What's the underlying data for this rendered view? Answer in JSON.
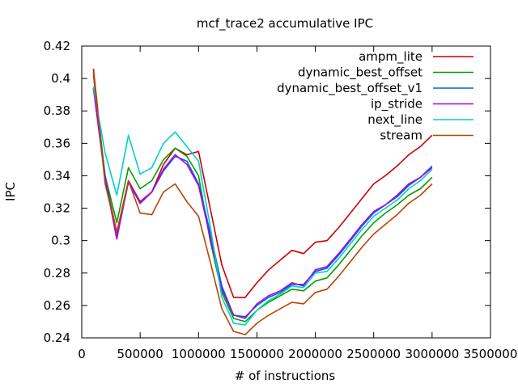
{
  "chart_data": {
    "type": "line",
    "title": "mcf_trace2 accumulative IPC",
    "xlabel": "# of instructions",
    "ylabel": "IPC",
    "xlim": [
      0,
      3500000
    ],
    "ylim": [
      0.24,
      0.42
    ],
    "x_ticks": [
      0,
      500000,
      1000000,
      1500000,
      2000000,
      2500000,
      3000000,
      3500000
    ],
    "y_ticks": [
      0.24,
      0.26,
      0.28,
      0.3,
      0.32,
      0.34,
      0.36,
      0.38,
      0.4,
      0.42
    ],
    "x_tick_labels": [
      "0",
      "500000",
      "1000000",
      "1500000",
      "2000000",
      "2500000",
      "3000000",
      "3500000"
    ],
    "y_tick_labels": [
      "0.24",
      "0.26",
      "0.28",
      "0.3",
      "0.32",
      "0.34",
      "0.36",
      "0.38",
      "0.4",
      "0.42"
    ],
    "grid": false,
    "legend_position": "top-right",
    "x": [
      100000,
      200000,
      300000,
      400000,
      500000,
      600000,
      700000,
      800000,
      900000,
      1000000,
      1100000,
      1200000,
      1300000,
      1400000,
      1500000,
      1600000,
      1700000,
      1800000,
      1900000,
      2000000,
      2100000,
      2200000,
      2300000,
      2400000,
      2500000,
      2600000,
      2700000,
      2800000,
      2900000,
      3000000
    ],
    "series": [
      {
        "name": "ampm_lite",
        "color": "#cc0000",
        "values": [
          0.406,
          0.338,
          0.305,
          0.337,
          0.324,
          0.33,
          0.347,
          0.357,
          0.353,
          0.355,
          0.32,
          0.285,
          0.265,
          0.265,
          0.274,
          0.282,
          0.288,
          0.294,
          0.292,
          0.299,
          0.3,
          0.308,
          0.317,
          0.326,
          0.335,
          0.34,
          0.346,
          0.353,
          0.358,
          0.365
        ]
      },
      {
        "name": "dynamic_best_offset",
        "color": "#00a000",
        "values": [
          0.402,
          0.34,
          0.311,
          0.345,
          0.332,
          0.337,
          0.35,
          0.357,
          0.352,
          0.34,
          0.3,
          0.268,
          0.252,
          0.25,
          0.257,
          0.262,
          0.266,
          0.27,
          0.269,
          0.275,
          0.277,
          0.285,
          0.294,
          0.303,
          0.311,
          0.317,
          0.322,
          0.328,
          0.332,
          0.339
        ]
      },
      {
        "name": "dynamic_best_offset_v1",
        "color": "#0066cc",
        "values": [
          0.394,
          0.34,
          0.302,
          0.336,
          0.323,
          0.33,
          0.343,
          0.352,
          0.349,
          0.335,
          0.305,
          0.272,
          0.254,
          0.253,
          0.26,
          0.265,
          0.268,
          0.273,
          0.273,
          0.281,
          0.283,
          0.291,
          0.3,
          0.309,
          0.317,
          0.322,
          0.327,
          0.334,
          0.339,
          0.346
        ]
      },
      {
        "name": "ip_stride",
        "color": "#aa00ee",
        "values": [
          0.394,
          0.338,
          0.301,
          0.337,
          0.323,
          0.33,
          0.344,
          0.353,
          0.347,
          0.334,
          0.302,
          0.27,
          0.254,
          0.252,
          0.261,
          0.266,
          0.269,
          0.274,
          0.272,
          0.282,
          0.284,
          0.292,
          0.301,
          0.31,
          0.318,
          0.322,
          0.328,
          0.335,
          0.339,
          0.345
        ]
      },
      {
        "name": "next_line",
        "color": "#00d0d0",
        "values": [
          0.395,
          0.354,
          0.328,
          0.365,
          0.341,
          0.345,
          0.36,
          0.367,
          0.358,
          0.349,
          0.309,
          0.265,
          0.249,
          0.248,
          0.257,
          0.263,
          0.267,
          0.272,
          0.271,
          0.28,
          0.281,
          0.289,
          0.298,
          0.307,
          0.315,
          0.32,
          0.325,
          0.332,
          0.337,
          0.344
        ]
      },
      {
        "name": "stream",
        "color": "#bb4400",
        "values": [
          0.404,
          0.335,
          0.305,
          0.337,
          0.317,
          0.316,
          0.33,
          0.335,
          0.324,
          0.315,
          0.287,
          0.258,
          0.244,
          0.242,
          0.249,
          0.254,
          0.258,
          0.262,
          0.261,
          0.268,
          0.27,
          0.278,
          0.287,
          0.296,
          0.304,
          0.31,
          0.316,
          0.323,
          0.328,
          0.335
        ]
      }
    ]
  }
}
